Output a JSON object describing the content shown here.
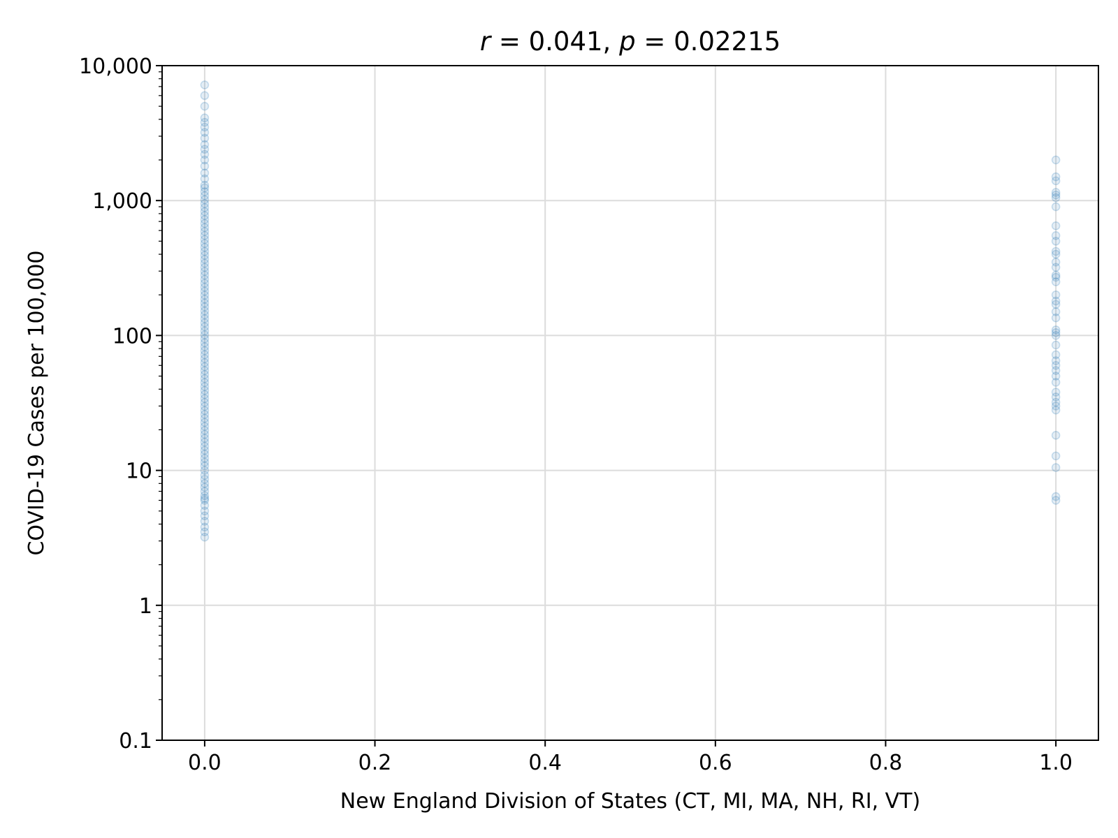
{
  "chart_data": {
    "type": "scatter",
    "title_parts": {
      "r_symbol": "r",
      "r_text": " = 0.041, ",
      "p_symbol": "p",
      "p_text": " =  0.02215"
    },
    "xlabel": "New England Division of States (CT, MI, MA, NH, RI, VT)",
    "ylabel": "COVID-19 Cases per 100,000",
    "xlim": [
      -0.05,
      1.05
    ],
    "ylim": [
      0.1,
      10000
    ],
    "yscale": "log",
    "grid": true,
    "x_ticks": [
      0.0,
      0.2,
      0.4,
      0.6,
      0.8,
      1.0
    ],
    "x_tick_labels": [
      "0.0",
      "0.2",
      "0.4",
      "0.6",
      "0.8",
      "1.0"
    ],
    "y_ticks": [
      0.1,
      1,
      10,
      100,
      1000,
      10000
    ],
    "y_tick_labels": [
      "0.1",
      "1",
      "10",
      "100",
      "1,000",
      "10,000"
    ],
    "point_color": "#1f77b4",
    "series": [
      {
        "x": 0,
        "values": [
          3.2,
          3.5,
          3.8,
          4.2,
          4.6,
          5.0,
          5.5,
          6.0,
          6.2,
          6.5,
          7.0,
          7.5,
          8.0,
          8.6,
          9.2,
          10,
          10.8,
          11.5,
          12.3,
          13.2,
          14.1,
          15.1,
          16.2,
          17.3,
          18.5,
          19.8,
          21.2,
          22.7,
          24.3,
          26,
          27.8,
          29.8,
          31.9,
          34.1,
          36.5,
          39.1,
          41.8,
          44.8,
          47.9,
          51.3,
          54.9,
          58.7,
          62.9,
          67.3,
          72,
          77.1,
          82.5,
          88.3,
          94.5,
          101,
          108,
          116,
          124,
          133,
          142,
          152,
          163,
          174,
          186,
          199,
          213,
          228,
          244,
          261,
          280,
          299,
          320,
          343,
          367,
          393,
          420,
          450,
          481,
          515,
          551,
          590,
          631,
          676,
          723,
          774,
          828,
          886,
          948,
          1015,
          1086,
          1162,
          1244,
          1300,
          1450,
          1600,
          1800,
          2000,
          2200,
          2400,
          2600,
          2900,
          3200,
          3500,
          3800,
          4100,
          5000,
          6000,
          7200
        ]
      },
      {
        "x": 1,
        "values": [
          6,
          6.4,
          10.5,
          12.8,
          18.2,
          28,
          30,
          32,
          35,
          38,
          45,
          50,
          55,
          60,
          65,
          72,
          85,
          100,
          105,
          110,
          135,
          150,
          170,
          180,
          200,
          250,
          270,
          280,
          320,
          350,
          400,
          420,
          500,
          550,
          650,
          900,
          1050,
          1100,
          1150,
          1400,
          1500,
          2000
        ]
      }
    ]
  }
}
